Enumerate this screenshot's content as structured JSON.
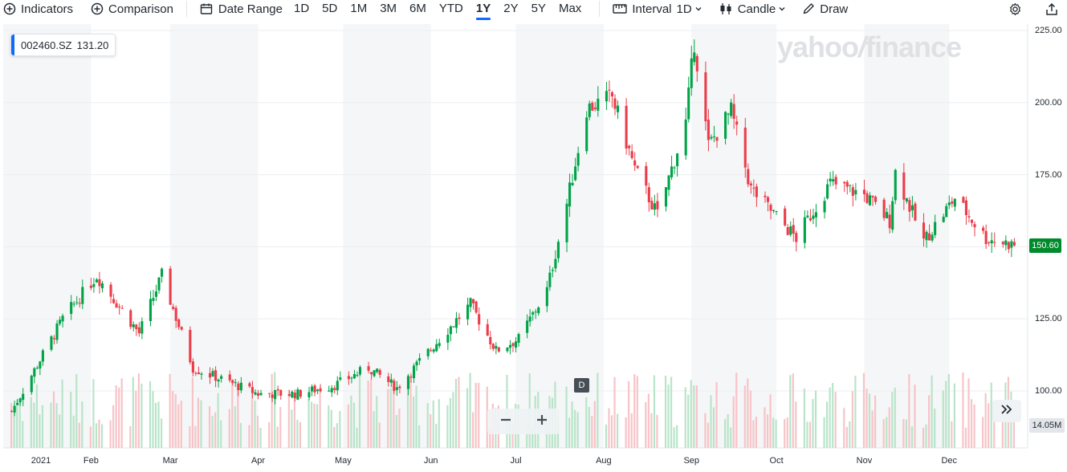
{
  "toolbar": {
    "indicators_label": "Indicators",
    "comparison_label": "Comparison",
    "date_range_label": "Date Range",
    "ranges": [
      "1D",
      "5D",
      "1M",
      "3M",
      "6M",
      "YTD",
      "1Y",
      "2Y",
      "5Y",
      "Max"
    ],
    "active_range": "1Y",
    "interval_label": "Interval",
    "interval_value": "1D",
    "chart_type_label": "Candle",
    "draw_label": "Draw"
  },
  "ticker": {
    "symbol": "002460.SZ",
    "value": "131.20"
  },
  "watermark": {
    "brand": "yahoo",
    "slash": "/",
    "suffix": "finance"
  },
  "last_price_label": "150.60",
  "volume_label": "14.05M",
  "event_marker": "D",
  "colors": {
    "up": "#00a347",
    "down": "#eb3d4a",
    "accent": "#0f69ff",
    "last_price_bg": "#008a2c"
  },
  "chart_data": {
    "type": "candlestick",
    "ylim": [
      92,
      228
    ],
    "yticks": [
      "225.00",
      "200.00",
      "175.00",
      "125.00",
      "100.00"
    ],
    "x_labels": [
      "2021",
      "Feb",
      "Mar",
      "Apr",
      "May",
      "Jun",
      "Jul",
      "Aug",
      "Sep",
      "Oct",
      "Nov",
      "Dec"
    ],
    "key_points": [
      {
        "date": "2021-01-04",
        "close": 93
      },
      {
        "date": "2021-01-22",
        "close": 125
      },
      {
        "date": "2021-02-03",
        "close": 140
      },
      {
        "date": "2021-02-18",
        "close": 120
      },
      {
        "date": "2021-02-26",
        "close": 140
      },
      {
        "date": "2021-03-09",
        "close": 108
      },
      {
        "date": "2021-04-01",
        "close": 99
      },
      {
        "date": "2021-04-15",
        "close": 99
      },
      {
        "date": "2021-04-28",
        "close": 102
      },
      {
        "date": "2021-05-10",
        "close": 108
      },
      {
        "date": "2021-05-20",
        "close": 101
      },
      {
        "date": "2021-06-04",
        "close": 118
      },
      {
        "date": "2021-06-15",
        "close": 130
      },
      {
        "date": "2021-06-24",
        "close": 114
      },
      {
        "date": "2021-07-02",
        "close": 118
      },
      {
        "date": "2021-07-12",
        "close": 135
      },
      {
        "date": "2021-07-19",
        "close": 165
      },
      {
        "date": "2021-07-26",
        "close": 198
      },
      {
        "date": "2021-08-04",
        "close": 202
      },
      {
        "date": "2021-08-12",
        "close": 177
      },
      {
        "date": "2021-08-20",
        "close": 161
      },
      {
        "date": "2021-08-30",
        "close": 193
      },
      {
        "date": "2021-09-02",
        "close": 221
      },
      {
        "date": "2021-09-07",
        "close": 185
      },
      {
        "date": "2021-09-15",
        "close": 197
      },
      {
        "date": "2021-09-22",
        "close": 170
      },
      {
        "date": "2021-10-08",
        "close": 153
      },
      {
        "date": "2021-10-20",
        "close": 172
      },
      {
        "date": "2021-11-01",
        "close": 168
      },
      {
        "date": "2021-11-10",
        "close": 159
      },
      {
        "date": "2021-11-12",
        "close": 176
      },
      {
        "date": "2021-11-22",
        "close": 152
      },
      {
        "date": "2021-12-03",
        "close": 167
      },
      {
        "date": "2021-12-14",
        "close": 153
      },
      {
        "date": "2021-12-24",
        "close": 150.6
      }
    ]
  }
}
